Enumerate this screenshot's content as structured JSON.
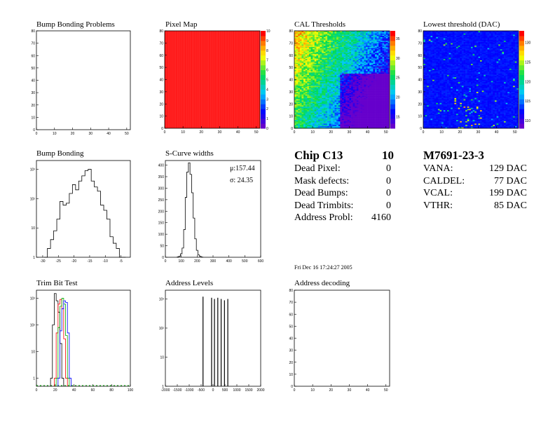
{
  "titles": {
    "bump_bonding_problems": "Bump Bonding Problems",
    "pixel_map": "Pixel Map",
    "cal_thresholds": "CAL Thresholds",
    "lowest_threshold": "Lowest threshold (DAC)",
    "bump_bonding": "Bump Bonding",
    "scurve_widths": "S-Curve widths",
    "trim_bit_test": "Trim Bit Test",
    "address_levels": "Address Levels",
    "address_decoding": "Address decoding"
  },
  "chip": {
    "name": "Chip C13",
    "number": "10",
    "rows": [
      {
        "label": "Dead Pixel:",
        "value": "0"
      },
      {
        "label": "Mask defects:",
        "value": "0"
      },
      {
        "label": "Dead Bumps:",
        "value": "0"
      },
      {
        "label": "Dead Trimbits:",
        "value": "0"
      },
      {
        "label": "Address Probl:",
        "value": "4160"
      }
    ]
  },
  "module": {
    "name": "M7691-23-3",
    "rows": [
      {
        "label": "VANA:",
        "value": "129 DAC"
      },
      {
        "label": "CALDEL:",
        "value": "77 DAC"
      },
      {
        "label": "VCAL:",
        "value": "199 DAC"
      },
      {
        "label": "VTHR:",
        "value": "85 DAC"
      }
    ]
  },
  "date": "Fri Dec 16 17:24:27 2005",
  "scurve_stats": {
    "mu": "μ:157.44",
    "sigma": "σ: 24.35"
  },
  "colors": {
    "pixel_map_fill": "#ff1a1a",
    "frame": "#000000",
    "palette_low": "#6600cc",
    "palette_high": "#ff0000"
  },
  "chart_data": [
    {
      "id": "bump_bonding_problems",
      "type": "heatmap",
      "title": "Bump Bonding Problems",
      "xlim": [
        0,
        52
      ],
      "ylim": [
        0,
        80
      ],
      "xticks": [
        "0",
        "10",
        "20",
        "30",
        "40",
        "50"
      ],
      "yticks": [
        "0",
        "10",
        "20",
        "30",
        "40",
        "50",
        "60",
        "70",
        "80"
      ],
      "note": "empty"
    },
    {
      "id": "pixel_map",
      "type": "heatmap",
      "title": "Pixel Map",
      "xlim": [
        0,
        52
      ],
      "ylim": [
        0,
        80
      ],
      "zlim": [
        0,
        10
      ],
      "xticks": [
        "0",
        "10",
        "20",
        "30",
        "40",
        "50"
      ],
      "yticks": [
        "0",
        "10",
        "20",
        "30",
        "40",
        "50",
        "60",
        "70",
        "80"
      ],
      "zticks": [
        "0",
        "1",
        "2",
        "3",
        "4",
        "5",
        "6",
        "7",
        "8",
        "9",
        "10"
      ],
      "uniform_value": 10
    },
    {
      "id": "cal_thresholds",
      "type": "heatmap",
      "title": "CAL Thresholds",
      "xlim": [
        0,
        52
      ],
      "ylim": [
        0,
        80
      ],
      "zlim": [
        12,
        37
      ],
      "xticks": [
        "0",
        "10",
        "20",
        "30",
        "40",
        "50"
      ],
      "yticks": [
        "0",
        "10",
        "20",
        "30",
        "40",
        "50",
        "60",
        "70",
        "80"
      ],
      "zticks": [
        "15",
        "20",
        "25",
        "30",
        "35"
      ]
    },
    {
      "id": "lowest_threshold",
      "type": "heatmap",
      "title": "Lowest threshold (DAC)",
      "xlim": [
        0,
        52
      ],
      "ylim": [
        0,
        80
      ],
      "zlim": [
        108,
        133
      ],
      "xticks": [
        "0",
        "10",
        "20",
        "30",
        "40",
        "50"
      ],
      "yticks": [
        "0",
        "10",
        "20",
        "30",
        "40",
        "50",
        "60",
        "70",
        "80"
      ],
      "zticks": [
        "110",
        "115",
        "120",
        "125",
        "130"
      ]
    },
    {
      "id": "bump_bonding",
      "type": "bar",
      "title": "Bump Bonding",
      "log_y": true,
      "xlim": [
        -32,
        -2
      ],
      "ylim": [
        1,
        2000
      ],
      "xticks": [
        "-30",
        "-25",
        "-20",
        "-15",
        "-10",
        "-5"
      ],
      "yticks": [
        "1",
        "10",
        "10²",
        "10³"
      ],
      "x": [
        -29,
        -28,
        -27,
        -26,
        -25,
        -24,
        -23,
        -22,
        -21,
        -20,
        -19,
        -18,
        -17,
        -16,
        -15,
        -14,
        -13,
        -12,
        -11,
        -10,
        -9,
        -8,
        -7,
        -6,
        -5,
        -4
      ],
      "values": [
        1,
        2,
        4,
        8,
        20,
        80,
        60,
        70,
        150,
        300,
        200,
        400,
        600,
        900,
        1000,
        400,
        250,
        180,
        60,
        40,
        20,
        5,
        3,
        2,
        1,
        1
      ]
    },
    {
      "id": "scurve_widths",
      "type": "bar",
      "title": "S-Curve widths",
      "xlim": [
        0,
        600
      ],
      "ylim": [
        0,
        420
      ],
      "xticks": [
        "0",
        "100",
        "200",
        "300",
        "400",
        "500",
        "600"
      ],
      "yticks": [
        "0",
        "50",
        "100",
        "150",
        "200",
        "250",
        "300",
        "350",
        "400"
      ],
      "x": [
        80,
        90,
        100,
        110,
        120,
        130,
        140,
        150,
        160,
        170,
        180,
        190,
        200,
        210,
        220,
        230
      ],
      "values": [
        2,
        5,
        15,
        40,
        120,
        260,
        370,
        410,
        360,
        280,
        170,
        80,
        30,
        10,
        4,
        1
      ]
    },
    {
      "id": "trim_bit_test",
      "type": "line",
      "title": "Trim Bit Test",
      "log_y": true,
      "xlim": [
        0,
        100
      ],
      "ylim": [
        0.5,
        2000
      ],
      "xticks": [
        "0",
        "20",
        "40",
        "60",
        "80",
        "100"
      ],
      "yticks": [
        "1",
        "10",
        "10²",
        "10³"
      ],
      "series": [
        {
          "color": "#000000",
          "x": [
            16,
            18,
            20,
            22,
            24,
            26,
            28
          ],
          "values": [
            1,
            100,
            1500,
            800,
            300,
            20,
            1
          ]
        },
        {
          "color": "#ff0000",
          "x": [
            20,
            22,
            24,
            26,
            28,
            30,
            32
          ],
          "values": [
            1,
            50,
            600,
            900,
            400,
            30,
            1
          ]
        },
        {
          "color": "#00aa00",
          "x": [
            22,
            24,
            26,
            28,
            30,
            32,
            34
          ],
          "values": [
            1,
            80,
            500,
            1000,
            600,
            40,
            1
          ]
        },
        {
          "color": "#0000ff",
          "x": [
            24,
            26,
            28,
            30,
            32,
            34,
            36
          ],
          "values": [
            1,
            60,
            400,
            800,
            700,
            50,
            1
          ]
        }
      ]
    },
    {
      "id": "address_levels",
      "type": "bar",
      "title": "Address Levels",
      "log_y": true,
      "xlim": [
        -2000,
        2000
      ],
      "ylim": [
        1,
        2000
      ],
      "xticks": [
        "-2000",
        "-1500",
        "-1000",
        "-500",
        "0",
        "500",
        "1000",
        "1500",
        "2000"
      ],
      "yticks": [
        "1",
        "10",
        "10²",
        "10³"
      ],
      "x": [
        -420,
        -60,
        60,
        200,
        340,
        480,
        620
      ],
      "values": [
        1200,
        1100,
        1000,
        1100,
        1000,
        900,
        1000
      ]
    },
    {
      "id": "address_decoding",
      "type": "heatmap",
      "title": "Address decoding",
      "xlim": [
        0,
        52
      ],
      "ylim": [
        0,
        80
      ],
      "xticks": [
        "0",
        "10",
        "20",
        "30",
        "40",
        "50"
      ],
      "yticks": [
        "0",
        "10",
        "20",
        "30",
        "40",
        "50",
        "60",
        "70",
        "80"
      ],
      "note": "empty"
    }
  ]
}
